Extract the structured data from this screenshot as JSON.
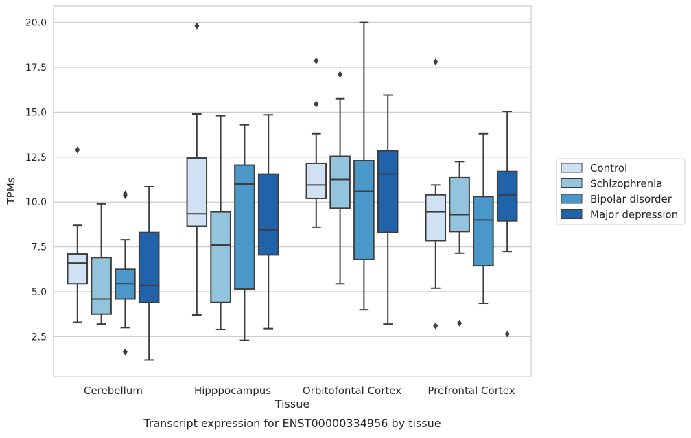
{
  "chart_data": {
    "type": "box",
    "title": "",
    "caption": "Transcript expression for ENST00000334956 by tissue",
    "xlabel": "Tissue",
    "ylabel": "TPMs",
    "ylim": [
      0.3,
      20.9
    ],
    "yticks": [
      2.5,
      5.0,
      7.5,
      10.0,
      12.5,
      15.0,
      17.5,
      20.0
    ],
    "ytick_labels": [
      "2.5",
      "5.0",
      "7.5",
      "10.0",
      "12.5",
      "15.0",
      "17.5",
      "20.0"
    ],
    "grid": "horizontal",
    "legend_position": "right",
    "categories": [
      "Cerebellum",
      "Hipppocampus",
      "Orbitofontal Cortex",
      "Prefrontal Cortex"
    ],
    "series": [
      {
        "name": "Control",
        "color": "#cfe1f2",
        "boxes": [
          {
            "whisker_low": 3.3,
            "q1": 5.45,
            "median": 6.6,
            "q3": 7.1,
            "whisker_high": 8.7,
            "outliers": [
              12.9
            ]
          },
          {
            "whisker_low": 3.7,
            "q1": 8.65,
            "median": 9.35,
            "q3": 12.45,
            "whisker_high": 14.9,
            "outliers": [
              19.8
            ]
          },
          {
            "whisker_low": 8.6,
            "q1": 10.2,
            "median": 10.95,
            "q3": 12.15,
            "whisker_high": 13.8,
            "outliers": [
              15.45,
              17.85
            ]
          },
          {
            "whisker_low": 5.2,
            "q1": 7.85,
            "median": 9.45,
            "q3": 10.4,
            "whisker_high": 10.95,
            "outliers": [
              3.1,
              17.8
            ]
          }
        ]
      },
      {
        "name": "Schizophrenia",
        "color": "#93c4de",
        "boxes": [
          {
            "whisker_low": 3.2,
            "q1": 3.75,
            "median": 4.6,
            "q3": 6.9,
            "whisker_high": 9.9,
            "outliers": []
          },
          {
            "whisker_low": 2.9,
            "q1": 4.4,
            "median": 7.6,
            "q3": 9.45,
            "whisker_high": 14.8,
            "outliers": []
          },
          {
            "whisker_low": 5.45,
            "q1": 9.65,
            "median": 11.25,
            "q3": 12.55,
            "whisker_high": 15.75,
            "outliers": [
              17.1
            ]
          },
          {
            "whisker_low": 7.15,
            "q1": 8.35,
            "median": 9.3,
            "q3": 11.35,
            "whisker_high": 12.25,
            "outliers": [
              3.25
            ]
          }
        ]
      },
      {
        "name": "Bipolar disorder",
        "color": "#4a98c9",
        "boxes": [
          {
            "whisker_low": 3.0,
            "q1": 4.6,
            "median": 5.45,
            "q3": 6.25,
            "whisker_high": 7.9,
            "outliers": [
              1.65,
              10.35,
              10.45
            ]
          },
          {
            "whisker_low": 2.3,
            "q1": 5.15,
            "median": 11.0,
            "q3": 12.05,
            "whisker_high": 14.3,
            "outliers": []
          },
          {
            "whisker_low": 4.0,
            "q1": 6.8,
            "median": 10.6,
            "q3": 12.3,
            "whisker_high": 20.0,
            "outliers": []
          },
          {
            "whisker_low": 4.35,
            "q1": 6.45,
            "median": 9.0,
            "q3": 10.3,
            "whisker_high": 13.8,
            "outliers": []
          }
        ]
      },
      {
        "name": "Major depression",
        "color": "#2163aa",
        "boxes": [
          {
            "whisker_low": 1.2,
            "q1": 4.4,
            "median": 5.35,
            "q3": 8.3,
            "whisker_high": 10.85,
            "outliers": []
          },
          {
            "whisker_low": 2.95,
            "q1": 7.05,
            "median": 8.45,
            "q3": 11.55,
            "whisker_high": 14.85,
            "outliers": []
          },
          {
            "whisker_low": 3.2,
            "q1": 8.3,
            "median": 11.55,
            "q3": 12.85,
            "whisker_high": 15.95,
            "outliers": []
          },
          {
            "whisker_low": 7.25,
            "q1": 8.95,
            "median": 10.4,
            "q3": 11.7,
            "whisker_high": 15.05,
            "outliers": [
              2.65
            ]
          }
        ]
      }
    ]
  }
}
